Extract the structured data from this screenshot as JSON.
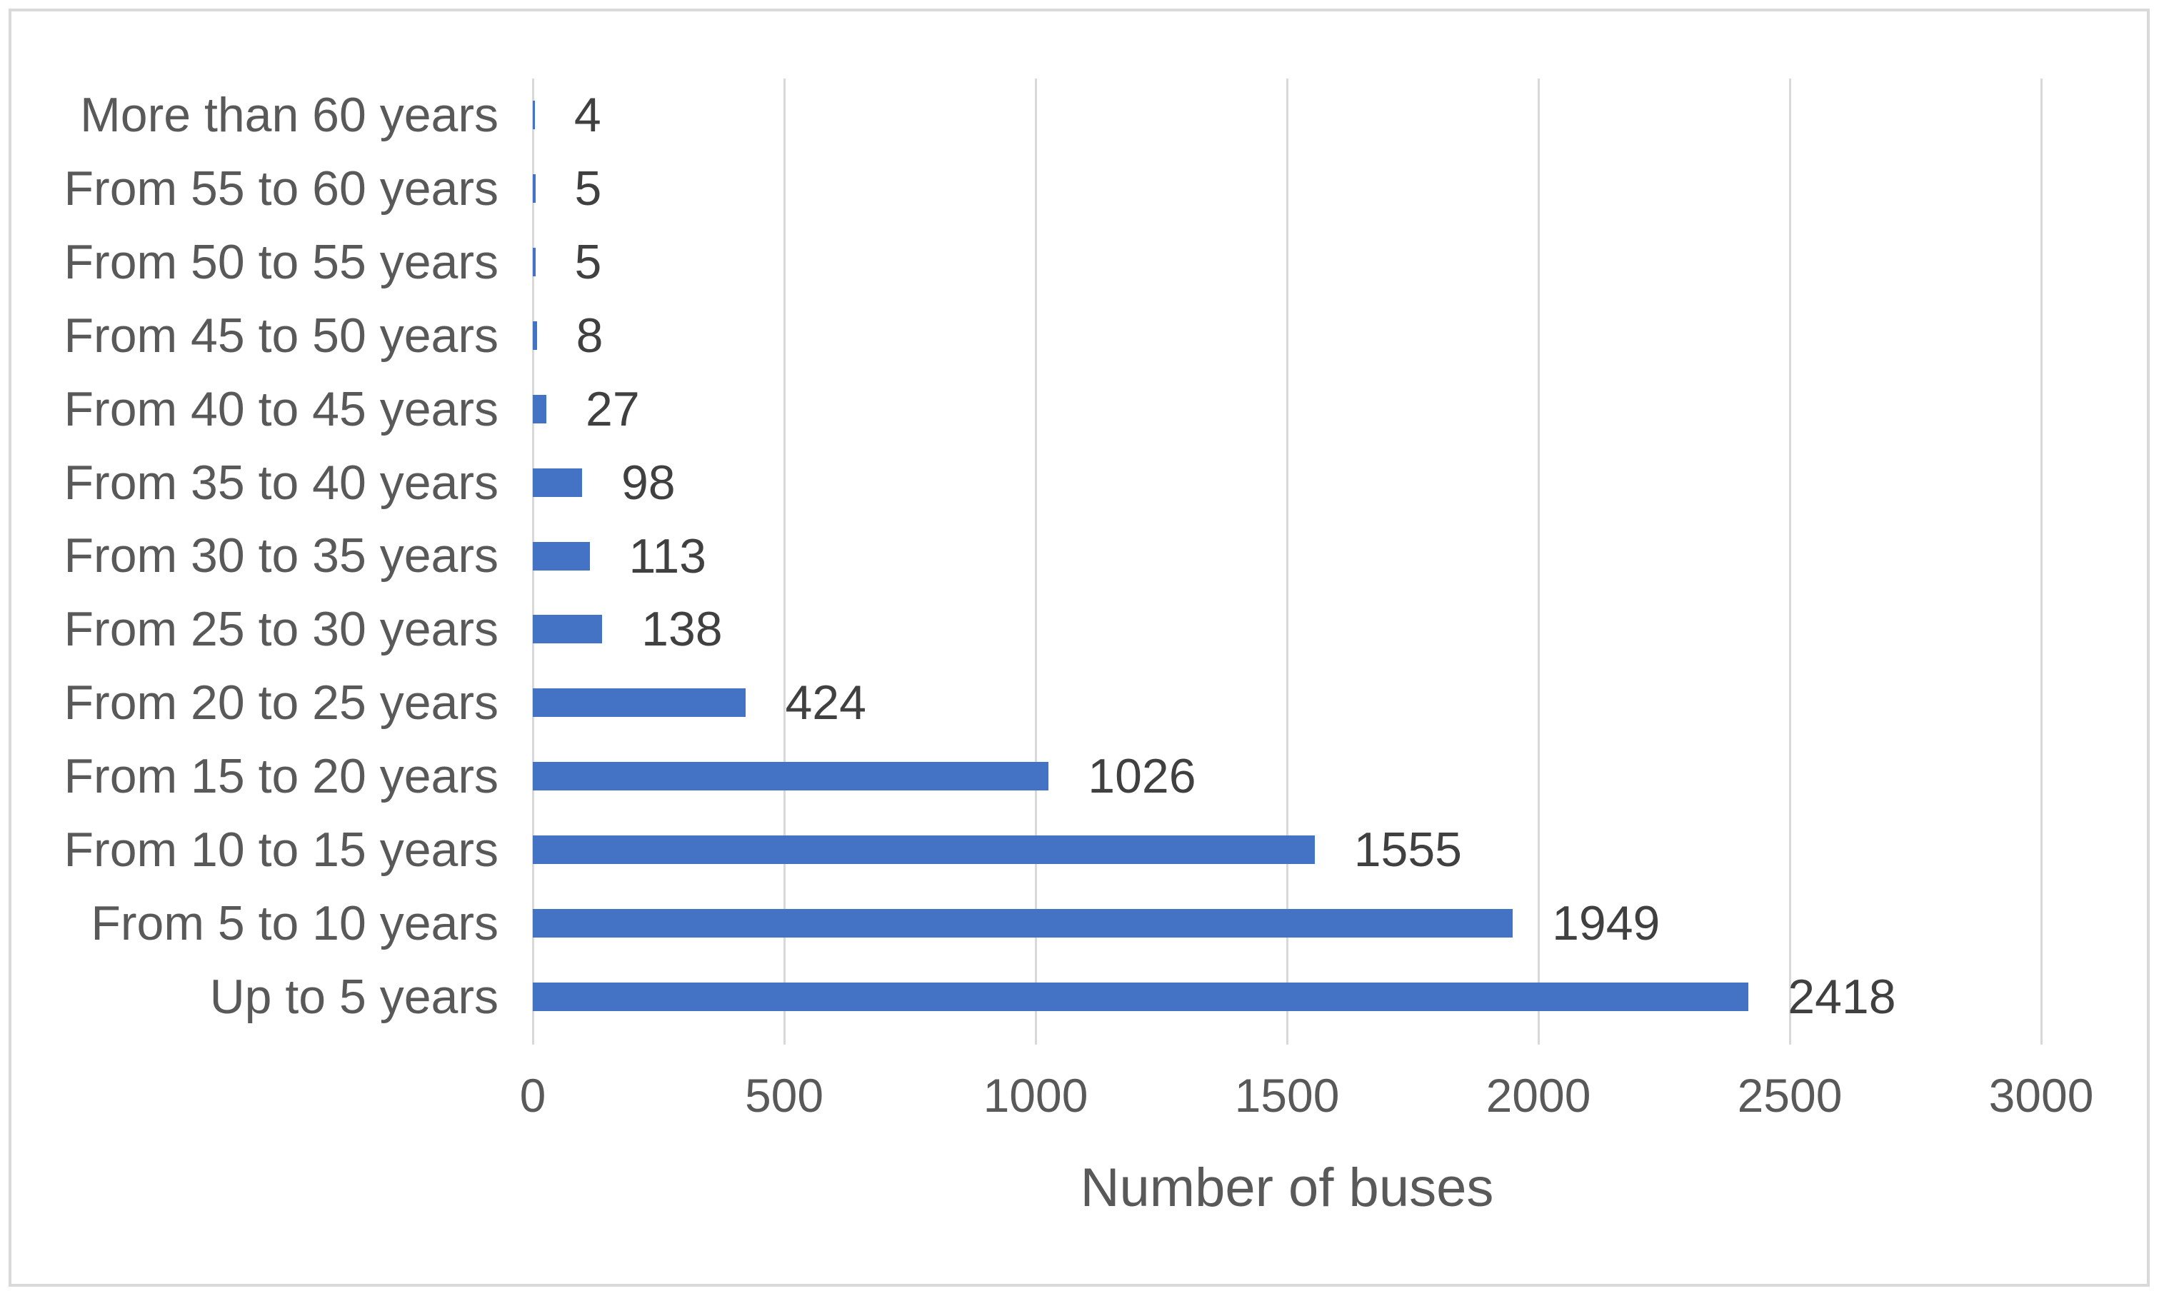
{
  "chart_data": {
    "type": "bar",
    "orientation": "horizontal",
    "title": "",
    "categories": [
      "More than 60 years",
      "From 55 to 60 years",
      "From 50 to 55 years",
      "From 45 to 50 years",
      "From 40 to 45 years",
      "From 35 to 40 years",
      "From 30 to 35 years",
      "From 25 to 30 years",
      "From 20 to 25 years",
      "From 15 to 20 years",
      "From 10 to 15 years",
      "From 5 to 10 years",
      "Up to 5 years"
    ],
    "values": [
      4,
      5,
      5,
      8,
      27,
      98,
      113,
      138,
      424,
      1026,
      1555,
      1949,
      2418
    ],
    "data_labels": [
      "4",
      "5",
      "5",
      "8",
      "27",
      "98",
      "113",
      "138",
      "424",
      "1026",
      "1555",
      "1949",
      "2418"
    ],
    "xlabel": "Number of buses",
    "x_ticks": [
      0,
      500,
      1000,
      1500,
      2000,
      2500,
      3000
    ],
    "x_tick_labels": [
      "0",
      "500",
      "1000",
      "1500",
      "2000",
      "2500",
      "3000"
    ],
    "xlim": [
      0,
      3000
    ],
    "grid": true,
    "legend": false,
    "colors": {
      "bar": "#4472C4",
      "gridline": "#D9D9D9",
      "axis_text": "#595959",
      "data_label_text": "#404040",
      "frame_border": "#D9D9D9",
      "background": "#FFFFFF"
    }
  }
}
